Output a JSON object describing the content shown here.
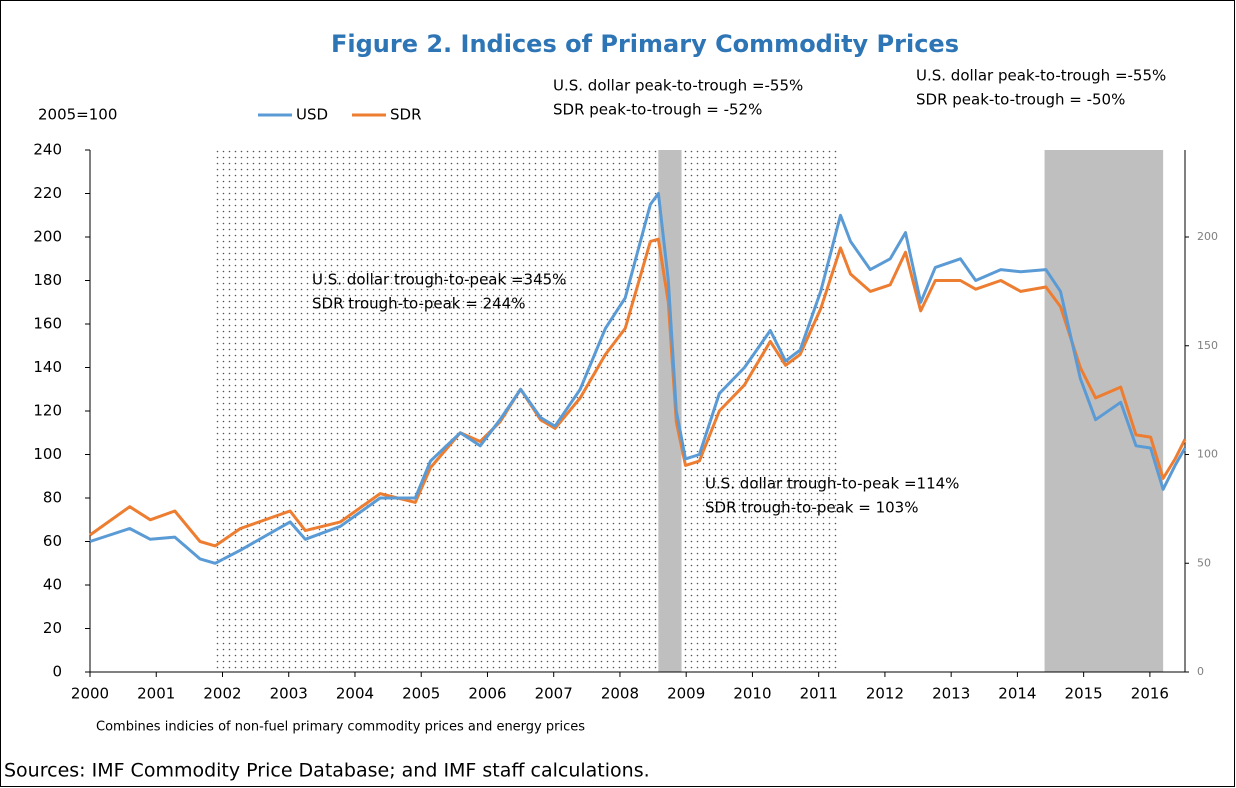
{
  "chart_data": {
    "type": "line",
    "title": "Figure 2. Indices of Primary Commodity Prices",
    "ylabel": "2005=100",
    "note": "Combines indicies of non-fuel primary commodity prices and energy prices",
    "source": "Sources: IMF Commodity Price Database; and IMF staff calculations.",
    "x": [
      2000.0,
      2000.6,
      2000.91,
      2001.28,
      2001.66,
      2001.89,
      2002.27,
      2003.02,
      2003.25,
      2003.78,
      2004.38,
      2004.91,
      2005.14,
      2005.59,
      2005.89,
      2006.19,
      2006.5,
      2006.8,
      2007.02,
      2007.4,
      2007.78,
      2008.08,
      2008.46,
      2008.58,
      2008.73,
      2008.85,
      2008.99,
      2009.2,
      2009.5,
      2009.88,
      2010.27,
      2010.5,
      2010.72,
      2011.03,
      2011.33,
      2011.48,
      2011.78,
      2012.08,
      2012.31,
      2012.54,
      2012.76,
      2013.14,
      2013.37,
      2013.75,
      2014.05,
      2014.43,
      2014.65,
      2014.95,
      2015.18,
      2015.56,
      2015.79,
      2016.01,
      2016.2,
      2016.38,
      2016.53
    ],
    "series": [
      {
        "name": "USD",
        "color": "#5b9bd5",
        "values": [
          60,
          66,
          61,
          62,
          52,
          50,
          56,
          69,
          61,
          67,
          80,
          80,
          97,
          110,
          104,
          116,
          130,
          117,
          113,
          130,
          158,
          172,
          215,
          220,
          180,
          120,
          98,
          100,
          128,
          140,
          157,
          143,
          148,
          175,
          210,
          198,
          185,
          190,
          202,
          170,
          186,
          190,
          180,
          185,
          184,
          185,
          175,
          135,
          116,
          124,
          104,
          103,
          84,
          95,
          103
        ]
      },
      {
        "name": "SDR",
        "color": "#ed7d31",
        "values": [
          63,
          76,
          70,
          74,
          60,
          58,
          66,
          74,
          65,
          69,
          82,
          78,
          94,
          110,
          106,
          115,
          130,
          116,
          112,
          126,
          146,
          158,
          198,
          199,
          170,
          115,
          95,
          97,
          120,
          132,
          152,
          141,
          146,
          167,
          195,
          183,
          175,
          178,
          193,
          166,
          180,
          180,
          176,
          180,
          175,
          177,
          168,
          140,
          126,
          131,
          109,
          108,
          89,
          98,
          107
        ]
      }
    ],
    "xlim": [
      2000,
      2016.53
    ],
    "xticks": [
      2000,
      2001,
      2002,
      2003,
      2004,
      2005,
      2006,
      2007,
      2008,
      2009,
      2010,
      2011,
      2012,
      2013,
      2014,
      2015,
      2016
    ],
    "ylim": [
      0,
      240
    ],
    "yticks": [
      0,
      20,
      40,
      60,
      80,
      100,
      120,
      140,
      160,
      180,
      200,
      220,
      240
    ],
    "y2lim": [
      0,
      240
    ],
    "y2ticks": [
      0,
      50,
      100,
      150,
      200
    ],
    "shaded_regions": [
      {
        "start": 2001.86,
        "end": 2011.33,
        "pattern": "dots"
      },
      {
        "start": 2008.58,
        "end": 2008.93,
        "color": "#bfbfbf"
      },
      {
        "start": 2014.41,
        "end": 2016.2,
        "color": "#bfbfbf"
      }
    ],
    "annotations": [
      {
        "lines": [
          "U.S. dollar peak-to-trough =-55%",
          "SDR peak-to-trough = -52%"
        ]
      },
      {
        "lines": [
          "U.S. dollar peak-to-trough =-55%",
          "SDR peak-to-trough = -50%"
        ]
      },
      {
        "lines": [
          "U.S. dollar trough-to-peak =345%",
          "SDR trough-to-peak = 244%"
        ]
      },
      {
        "lines": [
          "U.S. dollar trough-to-peak =114%",
          "SDR trough-to-peak = 103%"
        ]
      }
    ]
  }
}
